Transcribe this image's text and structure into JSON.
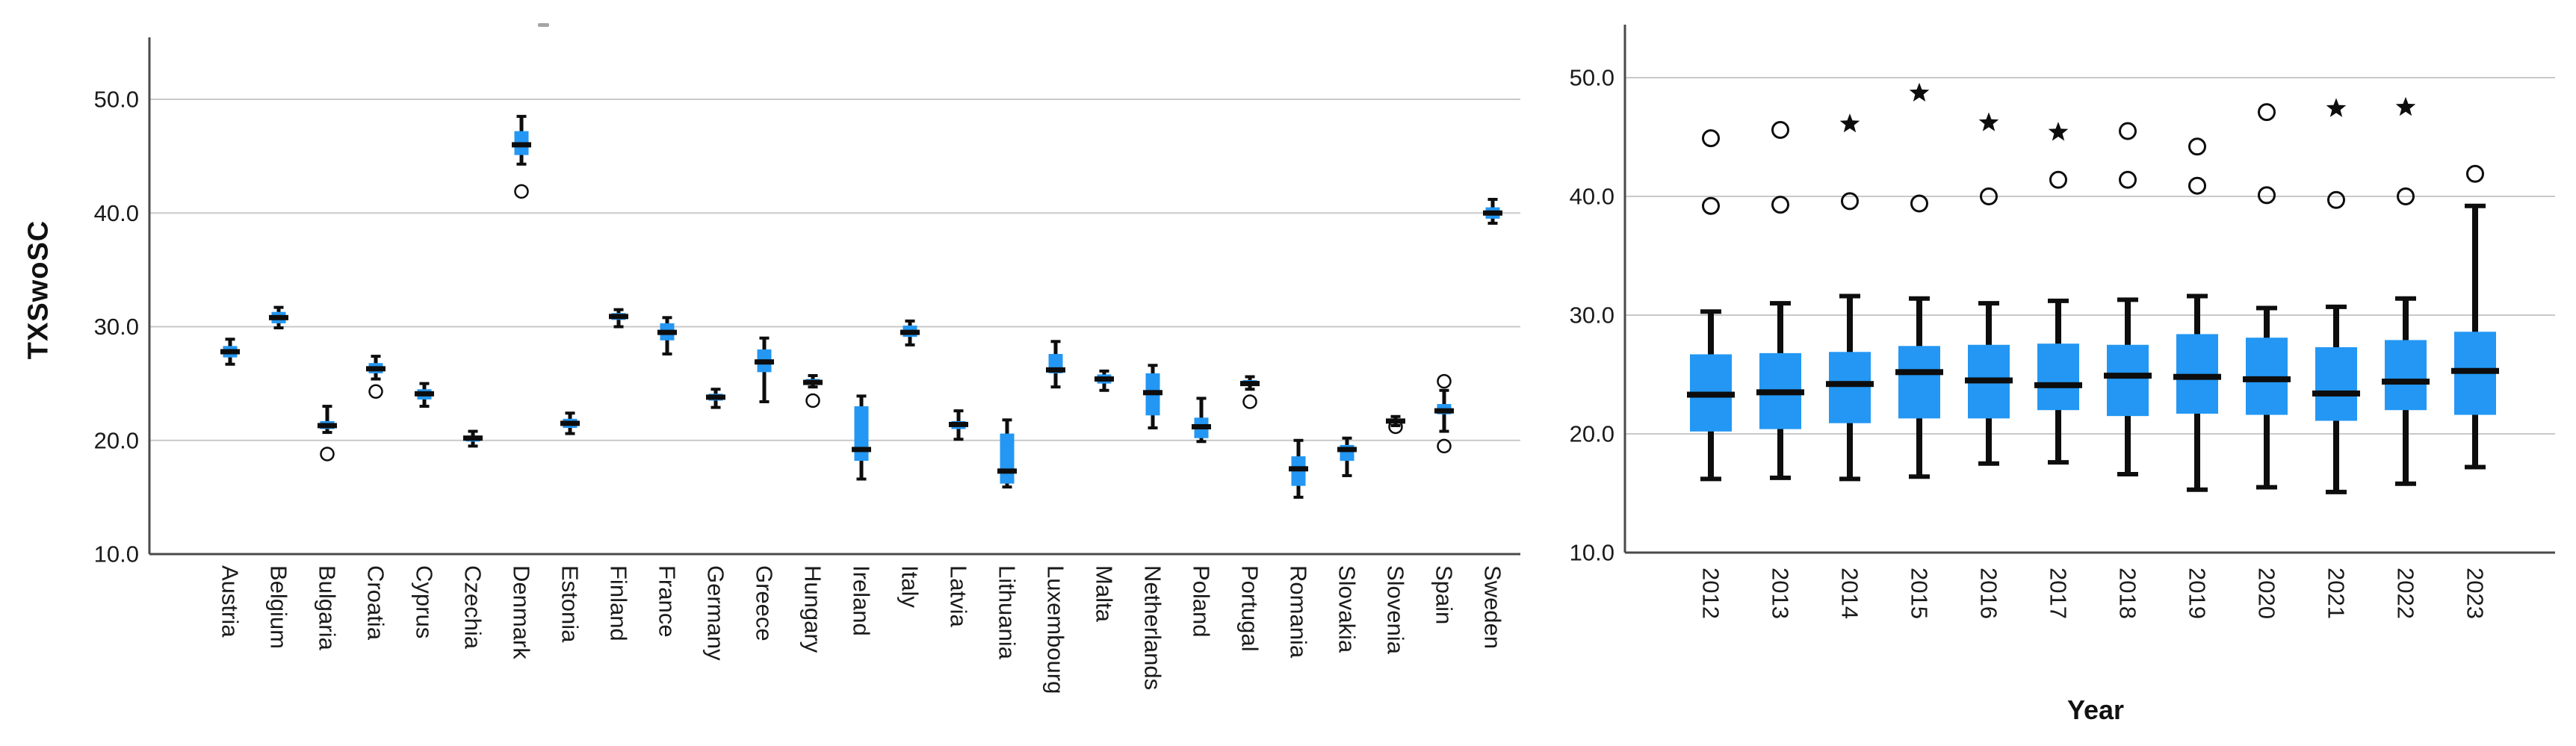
{
  "page": {
    "background": "#ffffff"
  },
  "chart_data": [
    {
      "type": "boxplot",
      "title": "",
      "ylabel": "TXSwoSC",
      "xlabel": "",
      "ylim": [
        10,
        50
      ],
      "yticks": [
        "10.0",
        "20.0",
        "30.0",
        "40.0",
        "50.0"
      ],
      "grid": "horizontal",
      "legend": "none",
      "colors": {
        "box": "#2397F3",
        "stroke": "#0d0d0d",
        "grid": "#c9c9c9",
        "axis": "#4a4a4a",
        "text": "#1a1a1a"
      },
      "categories": [
        "Austria",
        "Belgium",
        "Bulgaria",
        "Croatia",
        "Cyprus",
        "Czechia",
        "Denmark",
        "Estonia",
        "Finland",
        "France",
        "Germany",
        "Greece",
        "Hungary",
        "Ireland",
        "Italy",
        "Latvia",
        "Lithuania",
        "Luxembourg",
        "Malta",
        "Netherlands",
        "Poland",
        "Portugal",
        "Romania",
        "Slovakia",
        "Slovenia",
        "Spain",
        "Sweden"
      ],
      "boxes": [
        {
          "q1": 27.3,
          "median": 27.8,
          "q3": 28.3,
          "whisker_low": 26.7,
          "whisker_high": 28.9,
          "outliers": [],
          "extremes": []
        },
        {
          "q1": 30.3,
          "median": 30.8,
          "q3": 31.3,
          "whisker_low": 29.9,
          "whisker_high": 31.7,
          "outliers": [],
          "extremes": []
        },
        {
          "q1": 21.0,
          "median": 21.3,
          "q3": 21.7,
          "whisker_low": 20.7,
          "whisker_high": 23.0,
          "outliers": [
            18.8
          ],
          "extremes": []
        },
        {
          "q1": 25.9,
          "median": 26.3,
          "q3": 26.8,
          "whisker_low": 25.4,
          "whisker_high": 27.4,
          "outliers": [
            24.3
          ],
          "extremes": []
        },
        {
          "q1": 23.6,
          "median": 24.1,
          "q3": 24.5,
          "whisker_low": 23.0,
          "whisker_high": 25.0,
          "outliers": [],
          "extremes": []
        },
        {
          "q1": 19.9,
          "median": 20.2,
          "q3": 20.4,
          "whisker_low": 19.5,
          "whisker_high": 20.8,
          "outliers": [],
          "extremes": []
        },
        {
          "q1": 45.1,
          "median": 46.0,
          "q3": 47.2,
          "whisker_low": 44.3,
          "whisker_high": 48.5,
          "outliers": [
            41.9
          ],
          "extremes": []
        },
        {
          "q1": 21.1,
          "median": 21.5,
          "q3": 21.9,
          "whisker_low": 20.6,
          "whisker_high": 22.4,
          "outliers": [],
          "extremes": []
        },
        {
          "q1": 30.6,
          "median": 30.9,
          "q3": 31.2,
          "whisker_low": 30.0,
          "whisker_high": 31.5,
          "outliers": [],
          "extremes": []
        },
        {
          "q1": 28.8,
          "median": 29.5,
          "q3": 30.3,
          "whisker_low": 27.6,
          "whisker_high": 30.8,
          "outliers": [],
          "extremes": []
        },
        {
          "q1": 23.5,
          "median": 23.8,
          "q3": 24.1,
          "whisker_low": 22.9,
          "whisker_high": 24.5,
          "outliers": [],
          "extremes": []
        },
        {
          "q1": 26.0,
          "median": 26.9,
          "q3": 28.0,
          "whisker_low": 23.4,
          "whisker_high": 29.0,
          "outliers": [],
          "extremes": []
        },
        {
          "q1": 24.9,
          "median": 25.1,
          "q3": 25.4,
          "whisker_low": 24.7,
          "whisker_high": 25.7,
          "outliers": [
            23.5
          ],
          "extremes": []
        },
        {
          "q1": 18.2,
          "median": 19.2,
          "q3": 23.0,
          "whisker_low": 16.6,
          "whisker_high": 23.9,
          "outliers": [],
          "extremes": []
        },
        {
          "q1": 29.1,
          "median": 29.5,
          "q3": 30.1,
          "whisker_low": 28.4,
          "whisker_high": 30.5,
          "outliers": [],
          "extremes": []
        },
        {
          "q1": 21.0,
          "median": 21.4,
          "q3": 21.7,
          "whisker_low": 20.1,
          "whisker_high": 22.6,
          "outliers": [],
          "extremes": []
        },
        {
          "q1": 16.2,
          "median": 17.3,
          "q3": 20.6,
          "whisker_low": 15.9,
          "whisker_high": 21.8,
          "outliers": [],
          "extremes": []
        },
        {
          "q1": 25.9,
          "median": 26.2,
          "q3": 27.6,
          "whisker_low": 24.7,
          "whisker_high": 28.7,
          "outliers": [],
          "extremes": []
        },
        {
          "q1": 25.0,
          "median": 25.4,
          "q3": 25.8,
          "whisker_low": 24.4,
          "whisker_high": 26.1,
          "outliers": [],
          "extremes": []
        },
        {
          "q1": 22.2,
          "median": 24.2,
          "q3": 25.9,
          "whisker_low": 21.1,
          "whisker_high": 26.6,
          "outliers": [],
          "extremes": []
        },
        {
          "q1": 20.2,
          "median": 21.2,
          "q3": 22.0,
          "whisker_low": 19.9,
          "whisker_high": 23.7,
          "outliers": [],
          "extremes": []
        },
        {
          "q1": 24.8,
          "median": 25.0,
          "q3": 25.3,
          "whisker_low": 24.5,
          "whisker_high": 25.6,
          "outliers": [
            23.4
          ],
          "extremes": []
        },
        {
          "q1": 16.0,
          "median": 17.5,
          "q3": 18.6,
          "whisker_low": 15.0,
          "whisker_high": 20.0,
          "outliers": [],
          "extremes": []
        },
        {
          "q1": 18.2,
          "median": 19.2,
          "q3": 19.6,
          "whisker_low": 16.9,
          "whisker_high": 20.2,
          "outliers": [],
          "extremes": []
        },
        {
          "q1": 21.5,
          "median": 21.7,
          "q3": 21.9,
          "whisker_low": 21.3,
          "whisker_high": 22.1,
          "outliers": [
            21.2
          ],
          "extremes": []
        },
        {
          "q1": 22.3,
          "median": 22.6,
          "q3": 23.2,
          "whisker_low": 20.8,
          "whisker_high": 24.4,
          "outliers": [
            25.2,
            19.5
          ],
          "extremes": []
        },
        {
          "q1": 39.5,
          "median": 40.0,
          "q3": 40.5,
          "whisker_low": 39.1,
          "whisker_high": 41.2,
          "outliers": [],
          "extremes": []
        }
      ]
    },
    {
      "type": "boxplot",
      "title": "",
      "ylabel": "",
      "xlabel": "Year",
      "ylim": [
        10,
        50
      ],
      "yticks": [
        "10.0",
        "20.0",
        "30.0",
        "40.0",
        "50.0"
      ],
      "grid": "horizontal",
      "legend": "none",
      "colors": {
        "box": "#2397F3",
        "stroke": "#0d0d0d",
        "grid": "#c9c9c9",
        "axis": "#4a4a4a",
        "text": "#1a1a1a"
      },
      "categories": [
        "2012",
        "2013",
        "2014",
        "2015",
        "2016",
        "2017",
        "2018",
        "2019",
        "2020",
        "2021",
        "2022",
        "2023"
      ],
      "boxes": [
        {
          "q1": 20.2,
          "median": 23.3,
          "q3": 26.7,
          "whisker_low": 16.2,
          "whisker_high": 30.3,
          "outliers": [
            44.9,
            39.2
          ],
          "extremes": []
        },
        {
          "q1": 20.4,
          "median": 23.5,
          "q3": 26.8,
          "whisker_low": 16.3,
          "whisker_high": 31.0,
          "outliers": [
            45.6,
            39.3
          ],
          "extremes": []
        },
        {
          "q1": 20.9,
          "median": 24.2,
          "q3": 26.9,
          "whisker_low": 16.2,
          "whisker_high": 31.6,
          "outliers": [
            39.6
          ],
          "extremes": [
            46.1
          ]
        },
        {
          "q1": 21.3,
          "median": 25.2,
          "q3": 27.4,
          "whisker_low": 16.4,
          "whisker_high": 31.4,
          "outliers": [
            39.4
          ],
          "extremes": [
            48.7
          ]
        },
        {
          "q1": 21.3,
          "median": 24.5,
          "q3": 27.5,
          "whisker_low": 17.5,
          "whisker_high": 31.0,
          "outliers": [
            40.0
          ],
          "extremes": [
            46.2
          ]
        },
        {
          "q1": 22.0,
          "median": 24.1,
          "q3": 27.6,
          "whisker_low": 17.6,
          "whisker_high": 31.2,
          "outliers": [
            41.4
          ],
          "extremes": [
            45.4
          ]
        },
        {
          "q1": 21.5,
          "median": 24.9,
          "q3": 27.5,
          "whisker_low": 16.6,
          "whisker_high": 31.3,
          "outliers": [
            45.5,
            41.4
          ],
          "extremes": []
        },
        {
          "q1": 21.7,
          "median": 24.8,
          "q3": 28.4,
          "whisker_low": 15.3,
          "whisker_high": 31.6,
          "outliers": [
            44.2,
            40.9
          ],
          "extremes": []
        },
        {
          "q1": 21.6,
          "median": 24.6,
          "q3": 28.1,
          "whisker_low": 15.5,
          "whisker_high": 30.6,
          "outliers": [
            47.1,
            40.1
          ],
          "extremes": []
        },
        {
          "q1": 21.1,
          "median": 23.4,
          "q3": 27.3,
          "whisker_low": 15.1,
          "whisker_high": 30.7,
          "outliers": [
            39.7
          ],
          "extremes": [
            47.4
          ]
        },
        {
          "q1": 22.0,
          "median": 24.4,
          "q3": 27.9,
          "whisker_low": 15.8,
          "whisker_high": 31.4,
          "outliers": [
            40.0
          ],
          "extremes": [
            47.5
          ]
        },
        {
          "q1": 21.6,
          "median": 25.3,
          "q3": 28.6,
          "whisker_low": 17.2,
          "whisker_high": 39.2,
          "outliers": [
            41.9
          ],
          "extremes": []
        }
      ]
    }
  ]
}
